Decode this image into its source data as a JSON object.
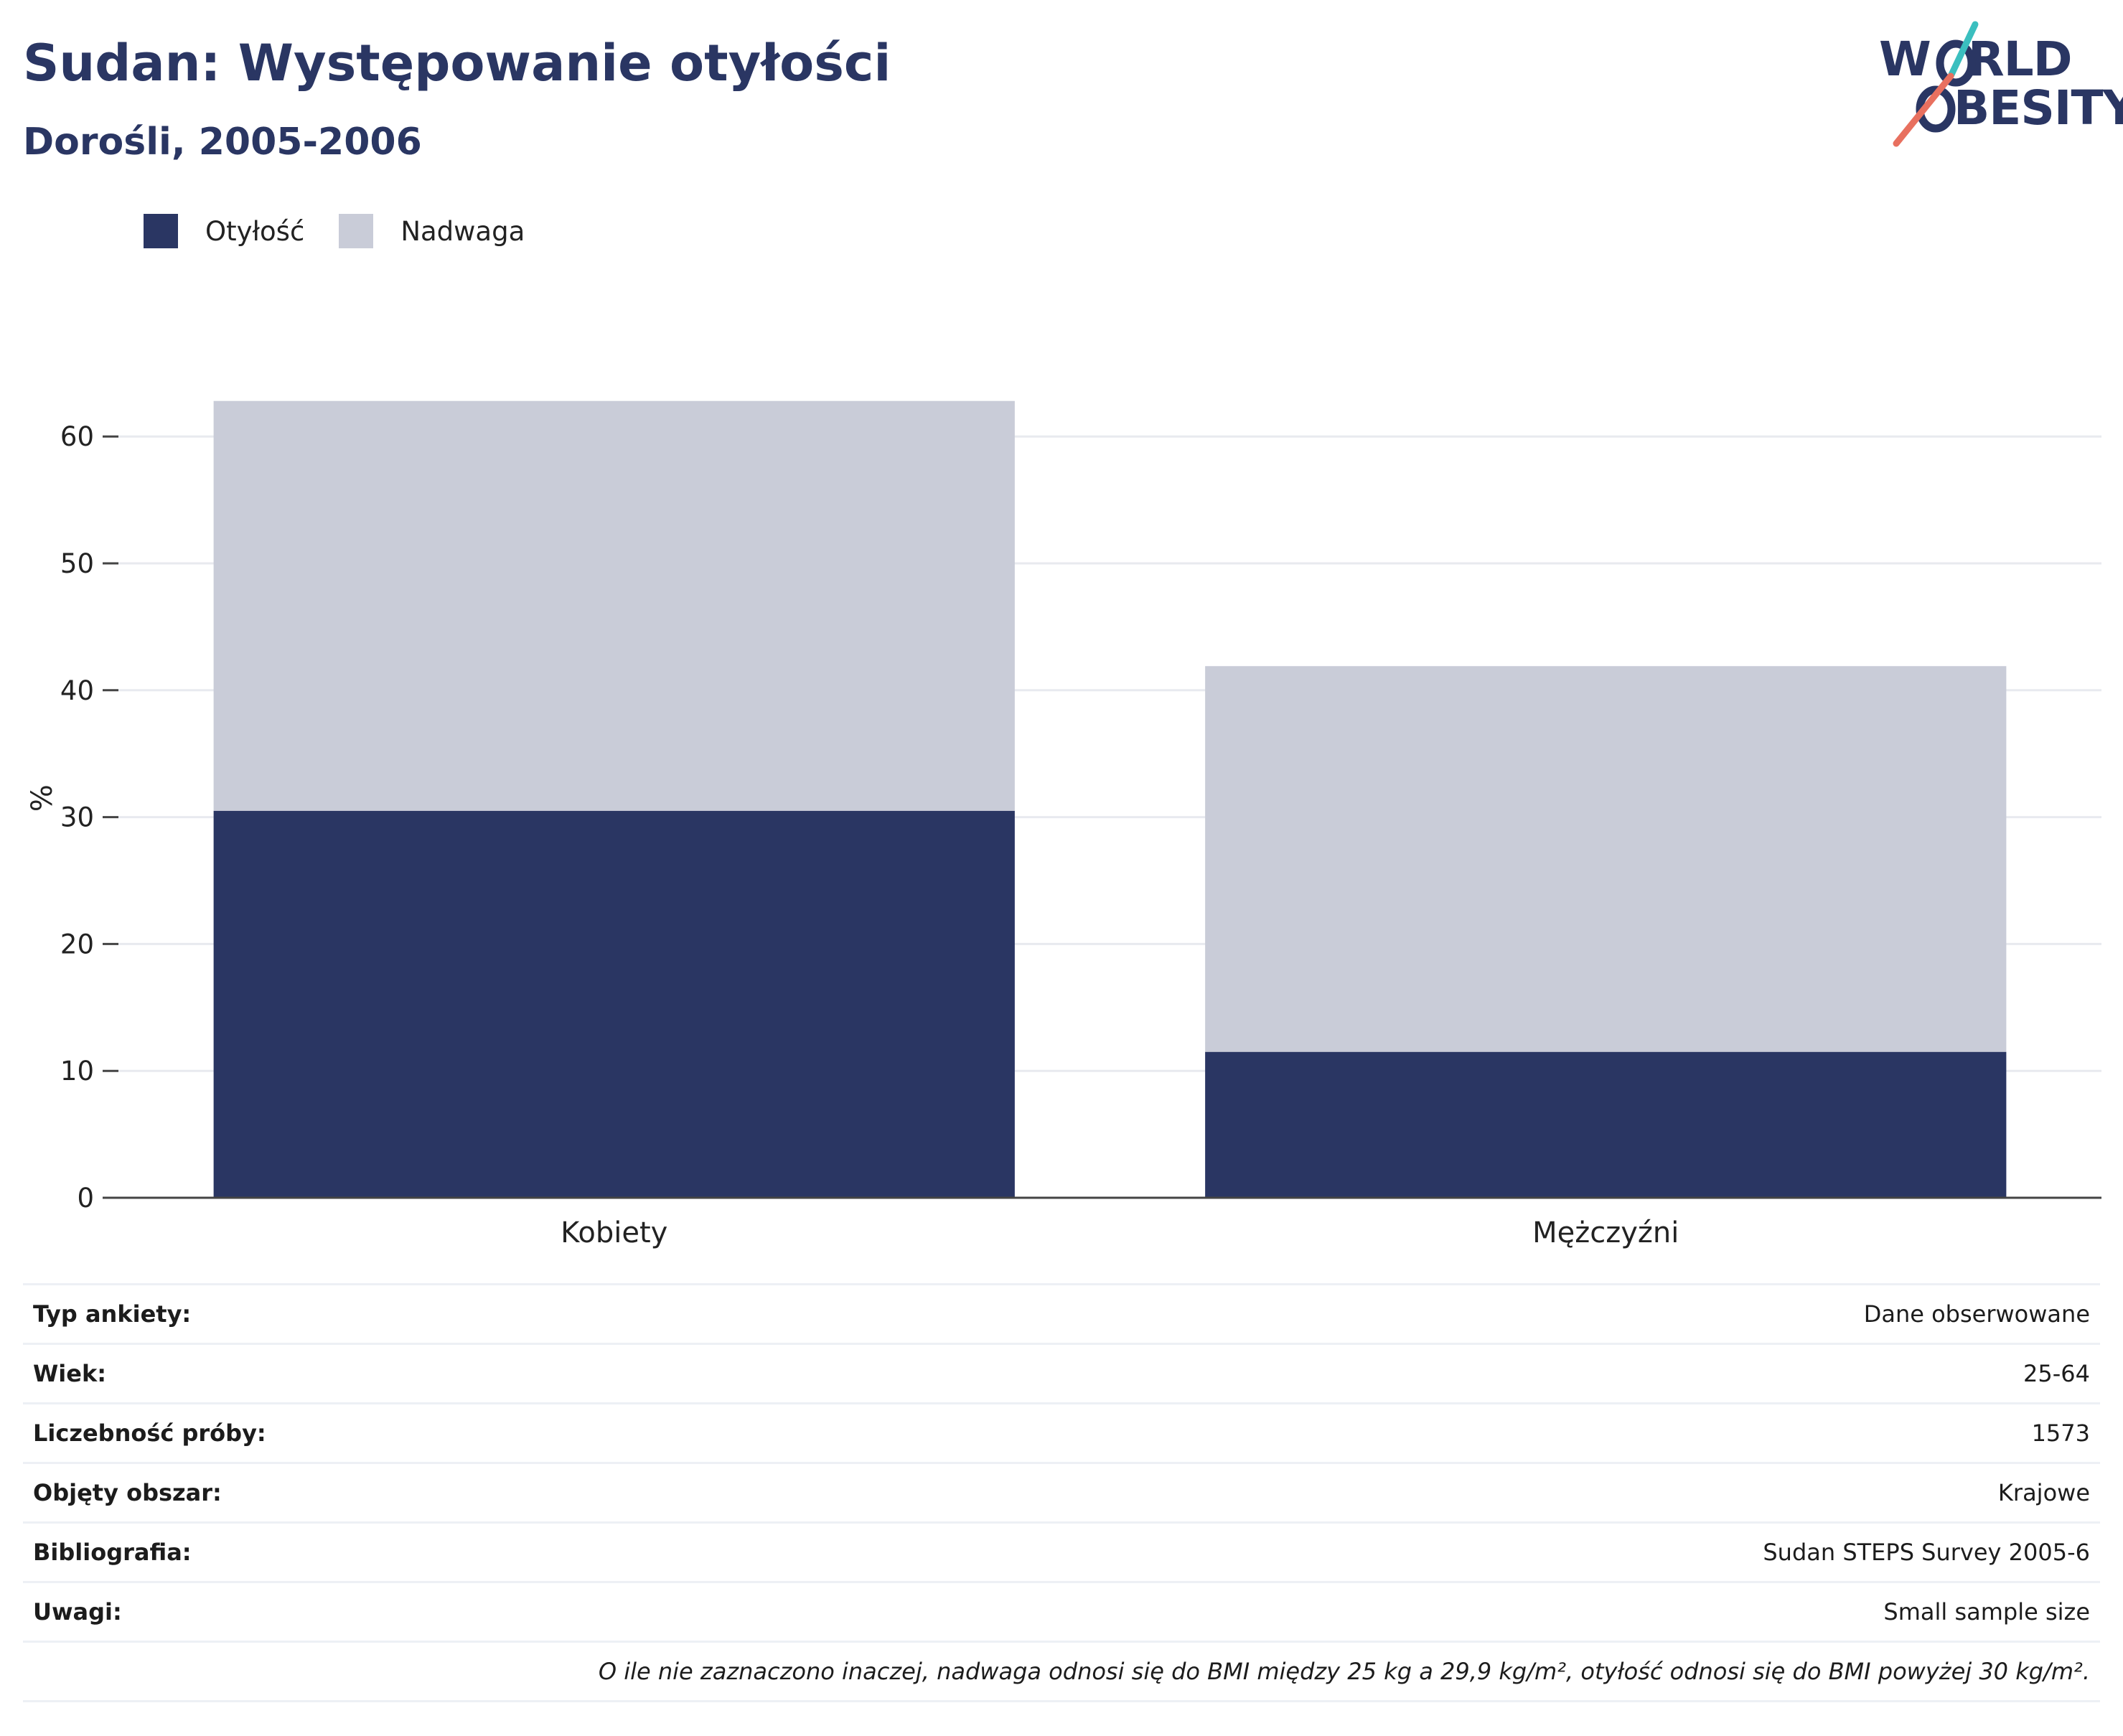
{
  "header": {
    "title": "Sudan: Występowanie otyłości",
    "subtitle": "Dorośli, 2005-2006"
  },
  "logo": {
    "line1": "WORLD",
    "line2": "OBESITY",
    "line1_rest": "RLD",
    "line1_start": "W",
    "line2_rest": "BESITY",
    "accent_teal": "#3bbfbf",
    "accent_coral": "#e8705f"
  },
  "legend": [
    {
      "label": "Otyłość",
      "color": "#2a3663"
    },
    {
      "label": "Nadwaga",
      "color": "#c9ccd8"
    }
  ],
  "chart_data": {
    "type": "bar",
    "stacked": true,
    "categories": [
      "Kobiety",
      "Mężczyźni"
    ],
    "series": [
      {
        "name": "Otyłość",
        "values": [
          30.5,
          11.5
        ],
        "color": "#2a3663"
      },
      {
        "name": "Nadwaga",
        "values": [
          32.3,
          30.4
        ],
        "color": "#c9ccd8"
      }
    ],
    "ylabel": "%",
    "ylim": [
      0,
      63
    ],
    "yticks": [
      0,
      10,
      20,
      30,
      40,
      50,
      60
    ],
    "grid": true,
    "legend_position": "top-left"
  },
  "info": {
    "rows": [
      {
        "key": "Typ ankiety:",
        "value": "Dane obserwowane"
      },
      {
        "key": "Wiek:",
        "value": "25-64"
      },
      {
        "key": "Liczebność próby:",
        "value": "1573"
      },
      {
        "key": "Objęty obszar:",
        "value": "Krajowe"
      },
      {
        "key": "Bibliografia:",
        "value": "Sudan STEPS Survey 2005-6"
      },
      {
        "key": "Uwagi:",
        "value": "Small sample size"
      }
    ],
    "note": "O ile nie zaznaczono inaczej, nadwaga odnosi się do BMI między 25 kg a 29,9 kg/m², otyłość odnosi się do BMI powyżej 30 kg/m²."
  }
}
